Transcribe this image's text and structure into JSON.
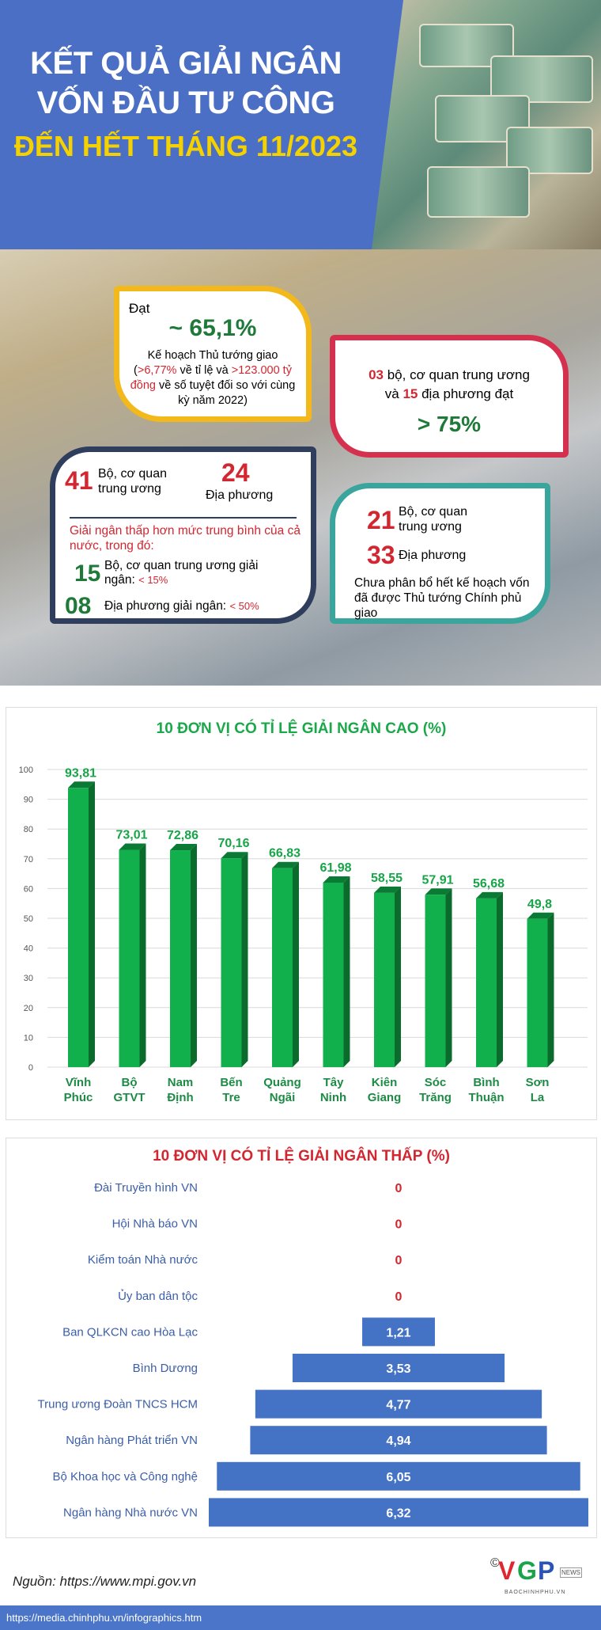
{
  "header": {
    "title_line1": "KẾT QUẢ GIẢI NGÂN",
    "title_line2": "VỐN ĐẦU TƯ CÔNG",
    "title_line3": "ĐẾN HẾT THÁNG 11/2023"
  },
  "card1": {
    "label": "Đạt",
    "value": "~ 65,1%",
    "line1": "Kế hoạch Thủ tướng giao",
    "open": "(",
    "pct": ">6,77%",
    "mid": " về tỉ lệ và ",
    "amount": ">123.000 tỷ đồng",
    "tail": " về số tuyệt đối so với cùng kỳ năm 2022)"
  },
  "card2": {
    "n1": "03",
    "t1": " bộ, cơ quan trung ương",
    "t2a": "và ",
    "n2": "15",
    "t2b": " địa phương đạt",
    "value": "> 75%"
  },
  "card3": {
    "n1": "41",
    "t1": "Bộ, cơ quan trung ương",
    "n2": "24",
    "t2": "Địa phương",
    "note": "Giải ngân thấp hơn mức trung bình của cả nước, trong đó:",
    "n3": "15",
    "t3": "Bộ, cơ quan trung ương giải ngân:",
    "v3": "< 15%",
    "n4": "08",
    "t4": "Địa phương giải ngân:",
    "v4": "< 50%"
  },
  "card4": {
    "n1": "21",
    "t1": "Bộ, cơ quan trung ương",
    "n2": "33",
    "t2": "Địa phương",
    "note": "Chưa phân bổ hết kế hoạch vốn đã được Thủ tướng Chính phủ giao"
  },
  "colors": {
    "blue": "#4a6fc4",
    "green": "#0ea84a",
    "red": "#d22630",
    "yellow": "#f3b91a",
    "navy": "#2f3e5c",
    "teal": "#3aa59c",
    "bar_blue": "#4472c4"
  },
  "chart_data": [
    {
      "type": "bar",
      "title": "10 ĐƠN VỊ CÓ TỈ LỆ GIẢI NGÂN CAO (%)",
      "categories": [
        "Vĩnh Phúc",
        "Bộ GTVT",
        "Nam Định",
        "Bến Tre",
        "Quảng Ngãi",
        "Tây Ninh",
        "Kiên Giang",
        "Sóc Trăng",
        "Bình Thuận",
        "Sơn La"
      ],
      "values": [
        93.81,
        73.01,
        72.86,
        70.16,
        66.83,
        61.98,
        58.55,
        57.91,
        56.68,
        49.8
      ],
      "labels": [
        "93,81",
        "73,01",
        "72,86",
        "70,16",
        "66,83",
        "61,98",
        "58,55",
        "57,91",
        "56,68",
        "49,8"
      ],
      "ylim": [
        0,
        100
      ],
      "yticks": [
        "0",
        "10",
        "20",
        "30",
        "40",
        "50",
        "60",
        "70",
        "80",
        "90",
        "100"
      ],
      "grid": true
    },
    {
      "type": "bar",
      "orientation": "horizontal-centered",
      "title": "10 ĐƠN VỊ CÓ TỈ LỆ GIẢI NGÂN THẤP (%)",
      "categories": [
        "Đài Truyền hình VN",
        "Hội Nhà báo VN",
        "Kiểm toán Nhà nước",
        "Ủy ban dân tộc",
        "Ban QLKCN cao Hòa Lạc",
        "Bình Dương",
        "Trung ương Đoàn TNCS HCM",
        "Ngân hàng Phát triển VN",
        "Bộ Khoa học và Công nghệ",
        "Ngân hàng Nhà nước VN"
      ],
      "values": [
        0,
        0,
        0,
        0,
        1.21,
        3.53,
        4.77,
        4.94,
        6.05,
        6.32
      ],
      "labels": [
        "0",
        "0",
        "0",
        "0",
        "1,21",
        "3,53",
        "4,77",
        "4,94",
        "6,05",
        "6,32"
      ]
    }
  ],
  "footer": {
    "source": "Nguồn: https://www.mpi.gov.vn",
    "logo": "©VGP NEWS BAOCHINHPHU.VN",
    "url": "https://media.chinhphu.vn/infographics.htm"
  }
}
